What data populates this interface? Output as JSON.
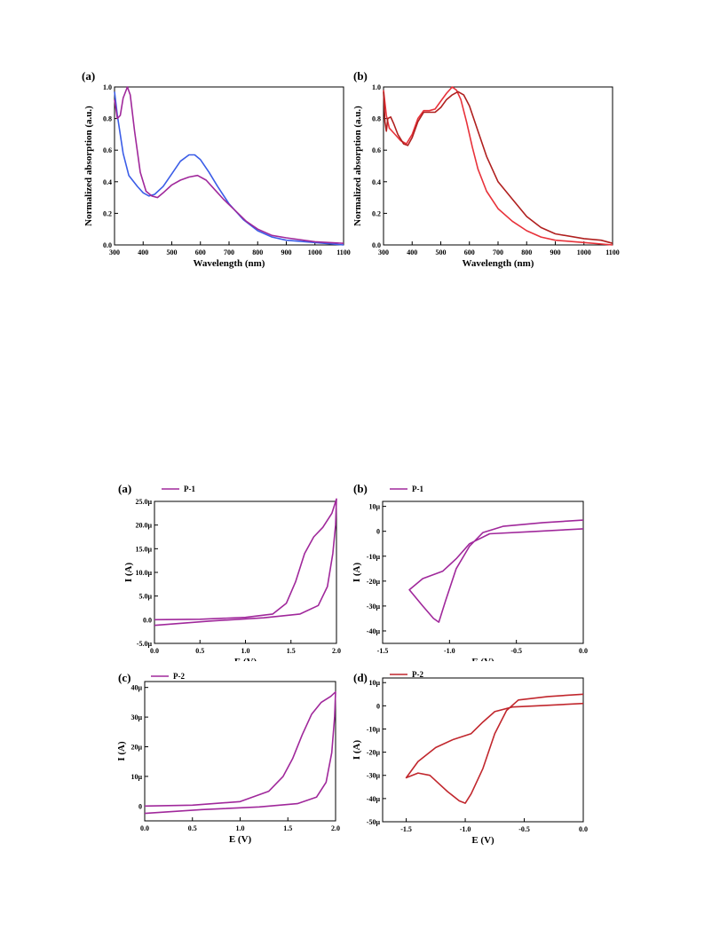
{
  "chart_data": [
    {
      "panel_label": "(a)",
      "type": "line",
      "xlabel": "Wavelength (nm)",
      "ylabel": "Normalized absorption (a.u.)",
      "xlim": [
        300,
        1100
      ],
      "ylim": [
        0,
        1.0
      ],
      "x_ticks": [
        "300",
        "400",
        "500",
        "600",
        "700",
        "800",
        "900",
        "1000",
        "1100"
      ],
      "y_ticks": [
        "0.0",
        "0.2",
        "0.4",
        "0.6",
        "0.8",
        "1.0"
      ],
      "series": [
        {
          "color": "#3b5de7",
          "points": [
            [
              300,
              0.97
            ],
            [
              310,
              0.82
            ],
            [
              330,
              0.58
            ],
            [
              350,
              0.44
            ],
            [
              380,
              0.37
            ],
            [
              400,
              0.33
            ],
            [
              420,
              0.31
            ],
            [
              440,
              0.32
            ],
            [
              470,
              0.37
            ],
            [
              500,
              0.45
            ],
            [
              530,
              0.53
            ],
            [
              560,
              0.57
            ],
            [
              580,
              0.57
            ],
            [
              600,
              0.54
            ],
            [
              630,
              0.46
            ],
            [
              660,
              0.37
            ],
            [
              700,
              0.26
            ],
            [
              750,
              0.16
            ],
            [
              800,
              0.09
            ],
            [
              850,
              0.05
            ],
            [
              900,
              0.03
            ],
            [
              1000,
              0.015
            ],
            [
              1100,
              0.0
            ]
          ]
        },
        {
          "color": "#a0289b",
          "points": [
            [
              300,
              0.92
            ],
            [
              310,
              0.8
            ],
            [
              320,
              0.82
            ],
            [
              330,
              0.93
            ],
            [
              345,
              1.0
            ],
            [
              355,
              0.95
            ],
            [
              370,
              0.72
            ],
            [
              390,
              0.46
            ],
            [
              410,
              0.34
            ],
            [
              430,
              0.31
            ],
            [
              450,
              0.3
            ],
            [
              470,
              0.33
            ],
            [
              500,
              0.38
            ],
            [
              530,
              0.41
            ],
            [
              560,
              0.43
            ],
            [
              590,
              0.44
            ],
            [
              620,
              0.41
            ],
            [
              650,
              0.35
            ],
            [
              680,
              0.29
            ],
            [
              720,
              0.22
            ],
            [
              760,
              0.15
            ],
            [
              800,
              0.1
            ],
            [
              850,
              0.06
            ],
            [
              900,
              0.045
            ],
            [
              1000,
              0.02
            ],
            [
              1100,
              0.01
            ]
          ]
        }
      ]
    },
    {
      "panel_label": "(b)",
      "type": "line",
      "xlabel": "Wavelength (nm)",
      "ylabel": "Normalized absorption (a.u.)",
      "xlim": [
        300,
        1100
      ],
      "ylim": [
        0,
        1.0
      ],
      "x_ticks": [
        "300",
        "400",
        "500",
        "600",
        "700",
        "800",
        "900",
        "1000",
        "1100"
      ],
      "y_ticks": [
        "0.0",
        "0.2",
        "0.4",
        "0.6",
        "0.8",
        "1.0"
      ],
      "series": [
        {
          "color": "#e8323a",
          "points": [
            [
              300,
              0.98
            ],
            [
              310,
              0.82
            ],
            [
              320,
              0.74
            ],
            [
              340,
              0.7
            ],
            [
              360,
              0.66
            ],
            [
              380,
              0.64
            ],
            [
              400,
              0.7
            ],
            [
              420,
              0.8
            ],
            [
              440,
              0.85
            ],
            [
              460,
              0.85
            ],
            [
              480,
              0.86
            ],
            [
              500,
              0.91
            ],
            [
              520,
              0.96
            ],
            [
              540,
              1.0
            ],
            [
              555,
              0.98
            ],
            [
              570,
              0.92
            ],
            [
              590,
              0.78
            ],
            [
              610,
              0.62
            ],
            [
              630,
              0.48
            ],
            [
              660,
              0.34
            ],
            [
              700,
              0.23
            ],
            [
              750,
              0.15
            ],
            [
              800,
              0.09
            ],
            [
              850,
              0.05
            ],
            [
              900,
              0.03
            ],
            [
              1000,
              0.015
            ],
            [
              1100,
              0.0
            ]
          ]
        },
        {
          "color": "#b0201f",
          "points": [
            [
              300,
              0.97
            ],
            [
              305,
              0.78
            ],
            [
              310,
              0.72
            ],
            [
              315,
              0.8
            ],
            [
              325,
              0.81
            ],
            [
              335,
              0.77
            ],
            [
              350,
              0.7
            ],
            [
              370,
              0.64
            ],
            [
              385,
              0.63
            ],
            [
              400,
              0.68
            ],
            [
              420,
              0.78
            ],
            [
              440,
              0.84
            ],
            [
              460,
              0.84
            ],
            [
              480,
              0.84
            ],
            [
              500,
              0.87
            ],
            [
              520,
              0.92
            ],
            [
              540,
              0.95
            ],
            [
              560,
              0.97
            ],
            [
              580,
              0.95
            ],
            [
              600,
              0.88
            ],
            [
              630,
              0.72
            ],
            [
              660,
              0.56
            ],
            [
              700,
              0.4
            ],
            [
              750,
              0.29
            ],
            [
              800,
              0.18
            ],
            [
              850,
              0.11
            ],
            [
              900,
              0.07
            ],
            [
              1000,
              0.04
            ],
            [
              1060,
              0.03
            ],
            [
              1100,
              0.01
            ]
          ]
        }
      ]
    },
    {
      "panel_label": "(a)",
      "type": "line",
      "xlabel": "E (V)",
      "ylabel": "I (A)",
      "legend": [
        "P-1"
      ],
      "xlim": [
        0,
        2.0
      ],
      "ylim": [
        -5,
        25
      ],
      "x_ticks": [
        "0.0",
        "0.5",
        "1.0",
        "1.5",
        "2.0"
      ],
      "y_ticks": [
        "-5.0μ",
        "0.0",
        "5.0μ",
        "10.0μ",
        "15.0μ",
        "20.0μ",
        "25.0μ"
      ],
      "series": [
        {
          "name": "P-1",
          "color": "#a0289b",
          "points": [
            [
              0.0,
              0.0
            ],
            [
              0.5,
              0.1
            ],
            [
              1.0,
              0.5
            ],
            [
              1.3,
              1.2
            ],
            [
              1.45,
              3.5
            ],
            [
              1.55,
              8.0
            ],
            [
              1.65,
              14.0
            ],
            [
              1.75,
              17.5
            ],
            [
              1.85,
              19.5
            ],
            [
              1.95,
              22.5
            ],
            [
              2.0,
              25.5
            ],
            [
              1.99,
              20.0
            ],
            [
              1.96,
              14.0
            ],
            [
              1.9,
              7.0
            ],
            [
              1.8,
              3.0
            ],
            [
              1.6,
              1.2
            ],
            [
              1.2,
              0.4
            ],
            [
              0.6,
              -0.3
            ],
            [
              0.0,
              -1.2
            ]
          ]
        }
      ]
    },
    {
      "panel_label": "(b)",
      "type": "line",
      "xlabel": "E (V)",
      "ylabel": "I (A)",
      "legend": [
        "P-1"
      ],
      "xlim": [
        -1.5,
        0.0
      ],
      "ylim": [
        -45,
        12
      ],
      "x_ticks": [
        "-1.5",
        "-1.0",
        "-0.5",
        "0.0"
      ],
      "y_ticks": [
        "-40μ",
        "-30μ",
        "-20μ",
        "-10μ",
        "0",
        "10μ"
      ],
      "series": [
        {
          "name": "P-1",
          "color": "#a0289b",
          "points": [
            [
              0.0,
              4.5
            ],
            [
              -0.3,
              3.5
            ],
            [
              -0.6,
              2.0
            ],
            [
              -0.75,
              -0.5
            ],
            [
              -0.85,
              -6.0
            ],
            [
              -0.95,
              -15.0
            ],
            [
              -1.03,
              -28.0
            ],
            [
              -1.08,
              -36.5
            ],
            [
              -1.12,
              -35.0
            ],
            [
              -1.2,
              -30.0
            ],
            [
              -1.3,
              -23.5
            ],
            [
              -1.2,
              -19.0
            ],
            [
              -1.05,
              -16.0
            ],
            [
              -0.95,
              -11.0
            ],
            [
              -0.85,
              -5.0
            ],
            [
              -0.7,
              -1.0
            ],
            [
              -0.4,
              -0.2
            ],
            [
              0.0,
              1.0
            ]
          ]
        }
      ]
    },
    {
      "panel_label": "(c)",
      "type": "line",
      "xlabel": "E (V)",
      "ylabel": "I (A)",
      "legend": [
        "P-2"
      ],
      "xlim": [
        0,
        2.0
      ],
      "ylim": [
        -5,
        42
      ],
      "x_ticks": [
        "0.0",
        "0.5",
        "1.0",
        "1.5",
        "2.0"
      ],
      "y_ticks": [
        "0",
        "10μ",
        "20μ",
        "30μ",
        "40μ"
      ],
      "series": [
        {
          "name": "P-2",
          "color": "#a0289b",
          "points": [
            [
              0.0,
              0.0
            ],
            [
              0.5,
              0.3
            ],
            [
              1.0,
              1.5
            ],
            [
              1.3,
              5.0
            ],
            [
              1.45,
              10.0
            ],
            [
              1.55,
              16.0
            ],
            [
              1.65,
              24.0
            ],
            [
              1.75,
              31.0
            ],
            [
              1.85,
              35.0
            ],
            [
              1.95,
              37.0
            ],
            [
              2.0,
              38.5
            ],
            [
              1.99,
              30.0
            ],
            [
              1.96,
              18.0
            ],
            [
              1.9,
              8.0
            ],
            [
              1.8,
              3.0
            ],
            [
              1.6,
              0.8
            ],
            [
              1.2,
              -0.3
            ],
            [
              0.6,
              -1.2
            ],
            [
              0.0,
              -2.5
            ]
          ]
        }
      ]
    },
    {
      "panel_label": "(d)",
      "type": "line",
      "xlabel": "E (V)",
      "ylabel": "I (A)",
      "legend": [
        "P-2"
      ],
      "xlim": [
        -1.7,
        0.0
      ],
      "ylim": [
        -50,
        12
      ],
      "x_ticks": [
        "-1.5",
        "-1.0",
        "-0.5",
        "0.0"
      ],
      "y_ticks": [
        "-50μ",
        "-40μ",
        "-30μ",
        "-20μ",
        "-10μ",
        "0",
        "10μ"
      ],
      "series": [
        {
          "name": "P-2",
          "color": "#c1272d",
          "points": [
            [
              0.0,
              5.0
            ],
            [
              -0.3,
              4.0
            ],
            [
              -0.55,
              2.5
            ],
            [
              -0.65,
              -2.0
            ],
            [
              -0.75,
              -12.0
            ],
            [
              -0.85,
              -27.0
            ],
            [
              -0.95,
              -38.0
            ],
            [
              -1.0,
              -42.0
            ],
            [
              -1.05,
              -41.0
            ],
            [
              -1.15,
              -37.0
            ],
            [
              -1.3,
              -30.0
            ],
            [
              -1.4,
              -29.0
            ],
            [
              -1.5,
              -31.0
            ],
            [
              -1.4,
              -24.0
            ],
            [
              -1.25,
              -18.0
            ],
            [
              -1.1,
              -14.5
            ],
            [
              -0.95,
              -12.0
            ],
            [
              -0.85,
              -7.0
            ],
            [
              -0.75,
              -2.5
            ],
            [
              -0.6,
              -0.5
            ],
            [
              -0.4,
              0.0
            ],
            [
              0.0,
              1.0
            ]
          ]
        }
      ]
    }
  ]
}
